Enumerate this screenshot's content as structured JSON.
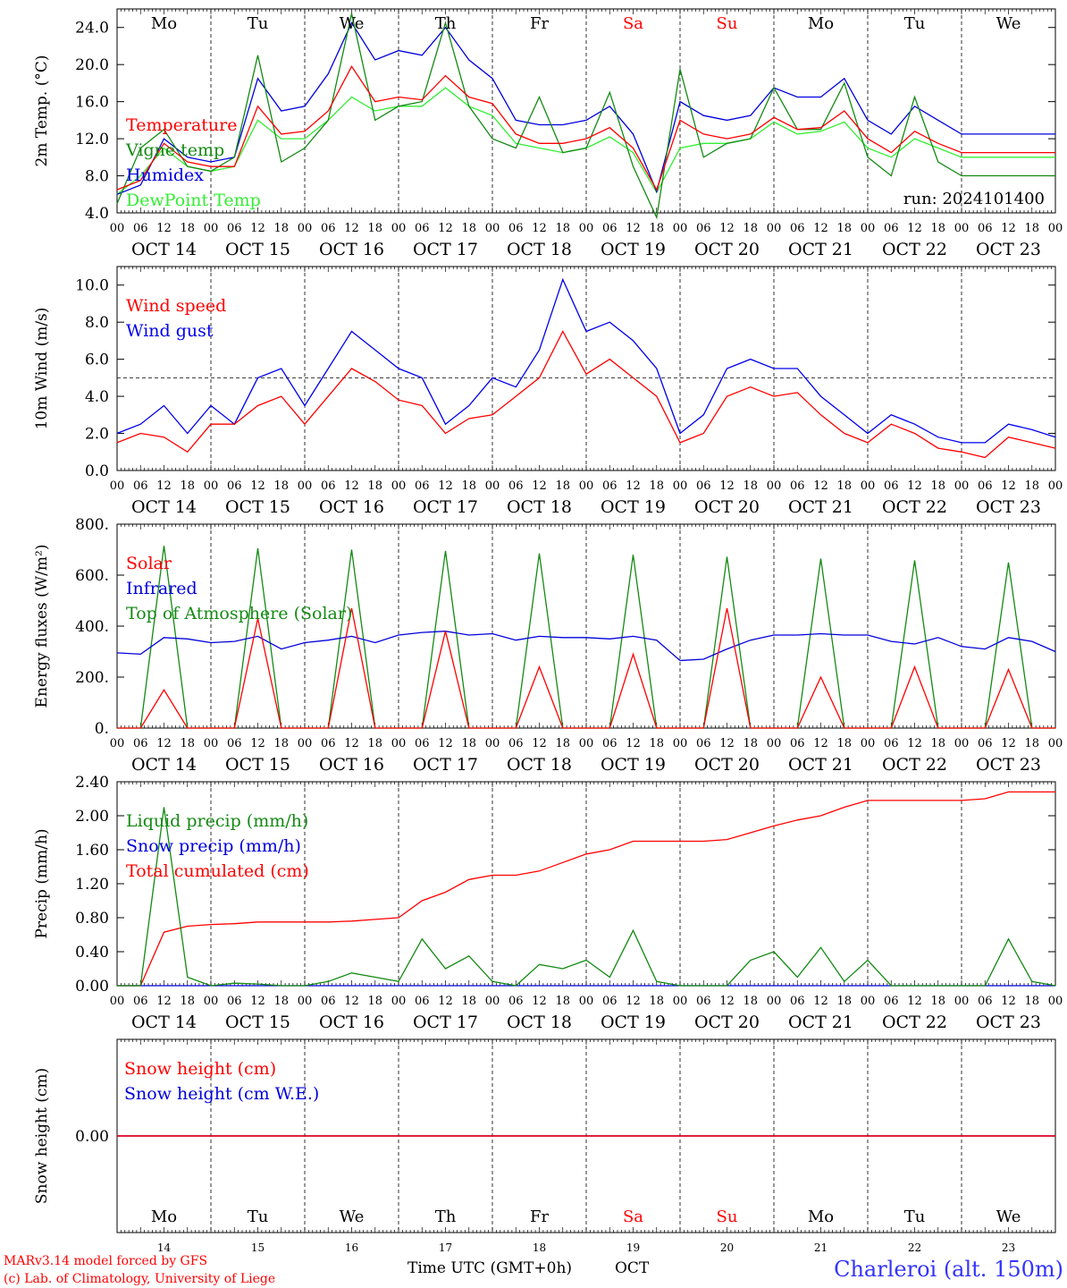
{
  "chart_data": [
    {
      "type": "line",
      "ylabel": "2m Temp. (°C)",
      "ylim": [
        4.0,
        26.0
      ],
      "yticks": [
        4.0,
        8.0,
        12.0,
        16.0,
        20.0,
        24.0
      ],
      "ytick_labels": [
        "4.0",
        "8.0",
        "12.0",
        "16.0",
        "20.0",
        "24.0"
      ],
      "annotation": "run: 2024101400",
      "x_hours": [
        0,
        6,
        12,
        18,
        24,
        30,
        36,
        42,
        48,
        54,
        60,
        66,
        72,
        78,
        84,
        90,
        96,
        102,
        108,
        114,
        120,
        126,
        132,
        138,
        144,
        150,
        156,
        162,
        168,
        174,
        180,
        186,
        192,
        198,
        204,
        210,
        216,
        222,
        228,
        234,
        240
      ],
      "legend_placement": "left",
      "series": [
        {
          "name": "Temperature",
          "color": "#ff0000",
          "values": [
            6.5,
            7.5,
            11.5,
            9.5,
            9.0,
            9.0,
            15.5,
            12.5,
            12.8,
            15.0,
            19.8,
            16.0,
            16.5,
            16.2,
            18.8,
            16.5,
            15.8,
            12.5,
            11.5,
            11.5,
            12.0,
            13.2,
            11.0,
            6.5,
            14.0,
            12.5,
            12.0,
            12.5,
            14.3,
            13.0,
            13.2,
            15.0,
            12.0,
            10.5,
            12.8,
            11.5,
            10.5,
            10.5,
            10.5,
            10.5,
            10.5
          ]
        },
        {
          "name": "Vigne temp",
          "color": "#138a13",
          "values": [
            5.0,
            11.0,
            13.0,
            9.0,
            8.5,
            10.0,
            21.0,
            9.5,
            11.0,
            14.0,
            25.5,
            14.0,
            15.5,
            16.0,
            24.5,
            15.5,
            12.0,
            11.0,
            16.5,
            10.5,
            11.0,
            17.0,
            9.0,
            3.5,
            19.5,
            10.0,
            11.5,
            12.0,
            17.5,
            13.0,
            13.0,
            18.0,
            10.0,
            8.0,
            16.5,
            9.5,
            8.0,
            8.0,
            8.0,
            8.0,
            8.0
          ]
        },
        {
          "name": "Humidex",
          "color": "#0000dd",
          "values": [
            6.0,
            7.0,
            12.0,
            10.0,
            9.5,
            10.0,
            18.5,
            15.0,
            15.5,
            19.0,
            24.5,
            20.5,
            21.5,
            21.0,
            24.0,
            20.5,
            18.5,
            14.0,
            13.5,
            13.5,
            14.0,
            15.5,
            12.5,
            6.3,
            16.0,
            14.5,
            14.0,
            14.5,
            17.5,
            16.5,
            16.5,
            18.5,
            14.0,
            12.5,
            15.5,
            14.0,
            12.5,
            12.5,
            12.5,
            12.5,
            12.5
          ]
        },
        {
          "name": "DewPoint Temp",
          "color": "#33ee33",
          "values": [
            6.0,
            8.0,
            11.0,
            9.0,
            8.5,
            9.0,
            14.0,
            12.0,
            12.0,
            14.0,
            16.5,
            15.0,
            15.5,
            15.5,
            17.5,
            15.5,
            14.5,
            11.5,
            11.0,
            10.5,
            11.0,
            12.2,
            10.5,
            6.2,
            11.0,
            11.5,
            11.5,
            12.0,
            13.8,
            12.5,
            12.8,
            13.8,
            11.0,
            10.0,
            12.0,
            11.0,
            10.0,
            10.0,
            10.0,
            10.0,
            10.0
          ]
        }
      ]
    },
    {
      "type": "line",
      "ylabel": "10m Wind (m/s)",
      "ylim": [
        0.0,
        11.0
      ],
      "yticks": [
        0.0,
        2.0,
        4.0,
        6.0,
        8.0,
        10.0
      ],
      "ytick_labels": [
        "0.0",
        "2.0",
        "4.0",
        "6.0",
        "8.0",
        "10.0"
      ],
      "reference_line": 5.0,
      "x_hours": [
        0,
        6,
        12,
        18,
        24,
        30,
        36,
        42,
        48,
        54,
        60,
        66,
        72,
        78,
        84,
        90,
        96,
        102,
        108,
        114,
        120,
        126,
        132,
        138,
        144,
        150,
        156,
        162,
        168,
        174,
        180,
        186,
        192,
        198,
        204,
        210,
        216,
        222,
        228,
        234,
        240
      ],
      "legend_placement": "left",
      "series": [
        {
          "name": "Wind speed",
          "color": "#ff0000",
          "values": [
            1.5,
            2.0,
            1.8,
            1.0,
            2.5,
            2.5,
            3.5,
            4.0,
            2.5,
            4.0,
            5.5,
            4.8,
            3.8,
            3.5,
            2.0,
            2.8,
            3.0,
            4.0,
            5.0,
            7.5,
            5.2,
            6.0,
            5.0,
            4.0,
            1.5,
            2.0,
            4.0,
            4.5,
            4.0,
            4.2,
            3.0,
            2.0,
            1.5,
            2.5,
            2.0,
            1.2,
            1.0,
            0.7,
            1.8,
            1.5,
            1.2
          ]
        },
        {
          "name": "Wind gust",
          "color": "#0000ee",
          "values": [
            2.0,
            2.5,
            3.5,
            2.0,
            3.5,
            2.5,
            5.0,
            5.5,
            3.5,
            5.5,
            7.5,
            6.5,
            5.5,
            5.0,
            2.5,
            3.5,
            5.0,
            4.5,
            6.5,
            10.3,
            7.5,
            8.0,
            7.0,
            5.5,
            2.0,
            3.0,
            5.5,
            6.0,
            5.5,
            5.5,
            4.0,
            3.0,
            2.0,
            3.0,
            2.5,
            1.8,
            1.5,
            1.5,
            2.5,
            2.2,
            1.8
          ]
        }
      ]
    },
    {
      "type": "line",
      "ylabel": "Energy fluxes (W/m²)",
      "ylim": [
        0,
        800
      ],
      "yticks": [
        0,
        200,
        400,
        600,
        800
      ],
      "ytick_labels": [
        "0.",
        "200.",
        "400.",
        "600.",
        "800."
      ],
      "x_hours": [
        0,
        6,
        12,
        18,
        24,
        30,
        36,
        42,
        48,
        54,
        60,
        66,
        72,
        78,
        84,
        90,
        96,
        102,
        108,
        114,
        120,
        126,
        132,
        138,
        144,
        150,
        156,
        162,
        168,
        174,
        180,
        186,
        192,
        198,
        204,
        210,
        216,
        222,
        228,
        234,
        240
      ],
      "legend_placement": "left",
      "series": [
        {
          "name": "Solar",
          "color": "#ff0000",
          "values": [
            0,
            0,
            150,
            0,
            0,
            0,
            430,
            0,
            0,
            0,
            470,
            0,
            0,
            0,
            380,
            0,
            0,
            0,
            240,
            0,
            0,
            0,
            290,
            0,
            0,
            0,
            470,
            0,
            0,
            0,
            200,
            0,
            0,
            0,
            240,
            0,
            0,
            0,
            230,
            0,
            0
          ]
        },
        {
          "name": "Infrared",
          "color": "#0000dd",
          "values": [
            295,
            290,
            355,
            350,
            335,
            340,
            360,
            310,
            335,
            345,
            360,
            335,
            365,
            375,
            380,
            365,
            370,
            345,
            360,
            355,
            355,
            350,
            360,
            345,
            265,
            270,
            310,
            345,
            365,
            365,
            370,
            365,
            365,
            340,
            330,
            355,
            320,
            310,
            355,
            340,
            300
          ]
        },
        {
          "name": "Top of Atmosphere (Solar)",
          "color": "#138a13",
          "values": [
            0,
            0,
            715,
            0,
            0,
            0,
            705,
            0,
            0,
            0,
            700,
            0,
            0,
            0,
            695,
            0,
            0,
            0,
            685,
            0,
            0,
            0,
            680,
            0,
            0,
            0,
            672,
            0,
            0,
            0,
            665,
            0,
            0,
            0,
            658,
            0,
            0,
            0,
            650,
            0,
            0
          ]
        }
      ]
    },
    {
      "type": "line",
      "ylabel": "Precip (mm/h)",
      "ylim": [
        0.0,
        2.4
      ],
      "yticks": [
        0.0,
        0.4,
        0.8,
        1.2,
        1.6,
        2.0,
        2.4
      ],
      "ytick_labels": [
        "0.00",
        "0.40",
        "0.80",
        "1.20",
        "1.60",
        "2.00",
        "2.40"
      ],
      "x_hours": [
        0,
        6,
        12,
        18,
        24,
        30,
        36,
        42,
        48,
        54,
        60,
        66,
        72,
        78,
        84,
        90,
        96,
        102,
        108,
        114,
        120,
        126,
        132,
        138,
        144,
        150,
        156,
        162,
        168,
        174,
        180,
        186,
        192,
        198,
        204,
        210,
        216,
        222,
        228,
        234,
        240
      ],
      "legend_placement": "left",
      "series": [
        {
          "name": "Liquid precip (mm/h)",
          "color": "#138a13",
          "values": [
            0,
            0,
            2.1,
            0.1,
            0,
            0.03,
            0.02,
            0,
            0,
            0.05,
            0.15,
            0.1,
            0.05,
            0.55,
            0.2,
            0.35,
            0.05,
            0,
            0.25,
            0.2,
            0.3,
            0.1,
            0.65,
            0.05,
            0,
            0,
            0,
            0.3,
            0.4,
            0.1,
            0.45,
            0.05,
            0.3,
            0,
            0,
            0,
            0,
            0,
            0.55,
            0.05,
            0
          ]
        },
        {
          "name": "Snow precip (mm/h)",
          "color": "#0000dd",
          "values": [
            0,
            0,
            0,
            0,
            0,
            0,
            0,
            0,
            0,
            0,
            0,
            0,
            0,
            0,
            0,
            0,
            0,
            0,
            0,
            0,
            0,
            0,
            0,
            0,
            0,
            0,
            0,
            0,
            0,
            0,
            0,
            0,
            0,
            0,
            0,
            0,
            0,
            0,
            0,
            0,
            0
          ]
        },
        {
          "name": "Total cumulated (cm)",
          "color": "#ff0000",
          "values": [
            0,
            0,
            0.63,
            0.7,
            0.72,
            0.73,
            0.75,
            0.75,
            0.75,
            0.75,
            0.76,
            0.78,
            0.8,
            1.0,
            1.1,
            1.25,
            1.3,
            1.3,
            1.35,
            1.45,
            1.55,
            1.6,
            1.7,
            1.7,
            1.7,
            1.7,
            1.72,
            1.8,
            1.88,
            1.95,
            2.0,
            2.1,
            2.18,
            2.18,
            2.18,
            2.18,
            2.18,
            2.2,
            2.28,
            2.28,
            2.28
          ]
        }
      ]
    },
    {
      "type": "line",
      "ylabel": "Snow height (cm)",
      "ylim": [
        -1.0,
        1.0
      ],
      "yticks": [
        0.0
      ],
      "ytick_labels": [
        "0.00"
      ],
      "x_hours": [
        0,
        6,
        12,
        18,
        24,
        30,
        36,
        42,
        48,
        54,
        60,
        66,
        72,
        78,
        84,
        90,
        96,
        102,
        108,
        114,
        120,
        126,
        132,
        138,
        144,
        150,
        156,
        162,
        168,
        174,
        180,
        186,
        192,
        198,
        204,
        210,
        216,
        222,
        228,
        234,
        240
      ],
      "legend_placement": "left",
      "series": [
        {
          "name": "Snow height (cm)",
          "color": "#ff0000",
          "values": [
            0,
            0,
            0,
            0,
            0,
            0,
            0,
            0,
            0,
            0,
            0,
            0,
            0,
            0,
            0,
            0,
            0,
            0,
            0,
            0,
            0,
            0,
            0,
            0,
            0,
            0,
            0,
            0,
            0,
            0,
            0,
            0,
            0,
            0,
            0,
            0,
            0,
            0,
            0,
            0,
            0
          ]
        },
        {
          "name": "Snow height (cm W.E.)",
          "color": "#0000dd",
          "values": [
            0,
            0,
            0,
            0,
            0,
            0,
            0,
            0,
            0,
            0,
            0,
            0,
            0,
            0,
            0,
            0,
            0,
            0,
            0,
            0,
            0,
            0,
            0,
            0,
            0,
            0,
            0,
            0,
            0,
            0,
            0,
            0,
            0,
            0,
            0,
            0,
            0,
            0,
            0,
            0,
            0
          ]
        }
      ]
    }
  ],
  "days": [
    {
      "abbr": "Mo",
      "date": "OCT 14",
      "num": "14",
      "weekend": false
    },
    {
      "abbr": "Tu",
      "date": "OCT 15",
      "num": "15",
      "weekend": false
    },
    {
      "abbr": "We",
      "date": "OCT 16",
      "num": "16",
      "weekend": false
    },
    {
      "abbr": "Th",
      "date": "OCT 17",
      "num": "17",
      "weekend": false
    },
    {
      "abbr": "Fr",
      "date": "OCT 18",
      "num": "18",
      "weekend": false
    },
    {
      "abbr": "Sa",
      "date": "OCT 19",
      "num": "19",
      "weekend": true
    },
    {
      "abbr": "Su",
      "date": "OCT 20",
      "num": "20",
      "weekend": true
    },
    {
      "abbr": "Mo",
      "date": "OCT 21",
      "num": "21",
      "weekend": false
    },
    {
      "abbr": "Tu",
      "date": "OCT 22",
      "num": "22",
      "weekend": false
    },
    {
      "abbr": "We",
      "date": "OCT 23",
      "num": "23",
      "weekend": false
    }
  ],
  "hour_labels": [
    "00",
    "06",
    "12",
    "18"
  ],
  "hour_end_label": "00",
  "colors": {
    "weekend": "#ff0000",
    "weekday": "#000000",
    "station": "#3333ff",
    "credit": "#ff0000"
  },
  "footer": {
    "credit_line1": "MARv3.14 model forced by GFS",
    "credit_line2": "(c) Lab. of Climatology, University of Liege",
    "xaxis_label": "Time UTC (GMT+0h)",
    "month": "OCT",
    "station": "Charleroi (alt. 150m)"
  }
}
